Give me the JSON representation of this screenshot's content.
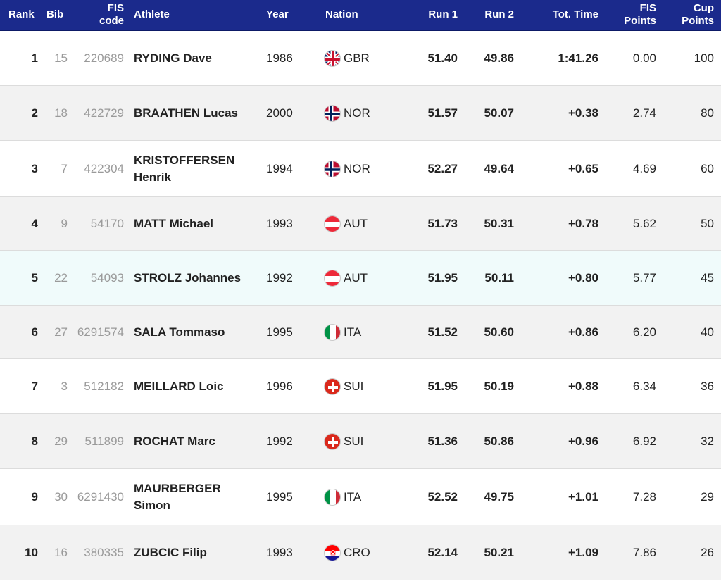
{
  "colors": {
    "header_bg": "#1b2a8c",
    "highlight_row": "#f0fbfb",
    "alt_row": "#f2f2f2"
  },
  "header": {
    "rank": "Rank",
    "bib": "Bib",
    "fis_line1": "FIS",
    "fis_line2": "code",
    "athlete": "Athlete",
    "year": "Year",
    "nation": "Nation",
    "run1": "Run 1",
    "run2": "Run 2",
    "tot": "Tot. Time",
    "fis_points_line1": "FIS",
    "fis_points_line2": "Points",
    "cup_points_line1": "Cup",
    "cup_points_line2": "Points"
  },
  "rows": [
    {
      "rank": "1",
      "bib": "15",
      "fis": "220689",
      "athlete_line1": "RYDING Dave",
      "athlete_line2": "",
      "year": "1986",
      "flag_icon": "flag-gbr-icon",
      "nation": "GBR",
      "run1": "51.40",
      "run2": "49.86",
      "tot": "1:41.26",
      "fis_points": "0.00",
      "cup_points": "100"
    },
    {
      "rank": "2",
      "bib": "18",
      "fis": "422729",
      "athlete_line1": "BRAATHEN Lucas",
      "athlete_line2": "",
      "year": "2000",
      "flag_icon": "flag-nor-icon",
      "nation": "NOR",
      "run1": "51.57",
      "run2": "50.07",
      "tot": "+0.38",
      "fis_points": "2.74",
      "cup_points": "80"
    },
    {
      "rank": "3",
      "bib": "7",
      "fis": "422304",
      "athlete_line1": "KRISTOFFERSEN",
      "athlete_line2": "Henrik",
      "year": "1994",
      "flag_icon": "flag-nor-icon",
      "nation": "NOR",
      "run1": "52.27",
      "run2": "49.64",
      "tot": "+0.65",
      "fis_points": "4.69",
      "cup_points": "60"
    },
    {
      "rank": "4",
      "bib": "9",
      "fis": "54170",
      "athlete_line1": "MATT Michael",
      "athlete_line2": "",
      "year": "1993",
      "flag_icon": "flag-aut-icon",
      "nation": "AUT",
      "run1": "51.73",
      "run2": "50.31",
      "tot": "+0.78",
      "fis_points": "5.62",
      "cup_points": "50"
    },
    {
      "rank": "5",
      "bib": "22",
      "fis": "54093",
      "athlete_line1": "STROLZ Johannes",
      "athlete_line2": "",
      "year": "1992",
      "flag_icon": "flag-aut-icon",
      "nation": "AUT",
      "run1": "51.95",
      "run2": "50.11",
      "tot": "+0.80",
      "fis_points": "5.77",
      "cup_points": "45"
    },
    {
      "rank": "6",
      "bib": "27",
      "fis": "6291574",
      "athlete_line1": "SALA Tommaso",
      "athlete_line2": "",
      "year": "1995",
      "flag_icon": "flag-ita-icon",
      "nation": "ITA",
      "run1": "51.52",
      "run2": "50.60",
      "tot": "+0.86",
      "fis_points": "6.20",
      "cup_points": "40"
    },
    {
      "rank": "7",
      "bib": "3",
      "fis": "512182",
      "athlete_line1": "MEILLARD Loic",
      "athlete_line2": "",
      "year": "1996",
      "flag_icon": "flag-sui-icon",
      "nation": "SUI",
      "run1": "51.95",
      "run2": "50.19",
      "tot": "+0.88",
      "fis_points": "6.34",
      "cup_points": "36"
    },
    {
      "rank": "8",
      "bib": "29",
      "fis": "511899",
      "athlete_line1": "ROCHAT Marc",
      "athlete_line2": "",
      "year": "1992",
      "flag_icon": "flag-sui-icon",
      "nation": "SUI",
      "run1": "51.36",
      "run2": "50.86",
      "tot": "+0.96",
      "fis_points": "6.92",
      "cup_points": "32"
    },
    {
      "rank": "9",
      "bib": "30",
      "fis": "6291430",
      "athlete_line1": "MAURBERGER",
      "athlete_line2": "Simon",
      "year": "1995",
      "flag_icon": "flag-ita-icon",
      "nation": "ITA",
      "run1": "52.52",
      "run2": "49.75",
      "tot": "+1.01",
      "fis_points": "7.28",
      "cup_points": "29"
    },
    {
      "rank": "10",
      "bib": "16",
      "fis": "380335",
      "athlete_line1": "ZUBCIC Filip",
      "athlete_line2": "",
      "year": "1993",
      "flag_icon": "flag-cro-icon",
      "nation": "CRO",
      "run1": "52.14",
      "run2": "50.21",
      "tot": "+1.09",
      "fis_points": "7.86",
      "cup_points": "26"
    }
  ]
}
